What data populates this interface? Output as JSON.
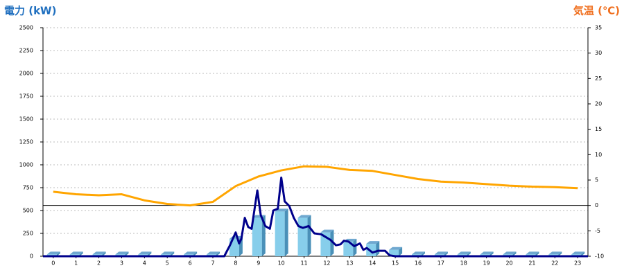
{
  "chart_data": {
    "type": "combo",
    "y_label": "電力 (kW)",
    "y2_label": "気温 (℃)",
    "categories": [
      "0",
      "1",
      "2",
      "3",
      "4",
      "5",
      "6",
      "7",
      "8",
      "9",
      "10",
      "11",
      "12",
      "13",
      "14",
      "15",
      "16",
      "17",
      "18",
      "19",
      "20",
      "21",
      "22",
      "23"
    ],
    "xlim": [
      -0.45,
      23.45
    ],
    "ylim": [
      0,
      2500
    ],
    "yticks": [
      0,
      250,
      500,
      750,
      1000,
      1250,
      1500,
      1750,
      2000,
      2250,
      2500
    ],
    "y2lim": [
      -10,
      35
    ],
    "y2ticks": [
      -10,
      -5,
      0,
      5,
      10,
      15,
      20,
      25,
      30,
      35
    ],
    "grid": true,
    "y2_zero_line": true,
    "series": [
      {
        "type": "bar",
        "color": "#87ceeb",
        "values": [
          20,
          20,
          20,
          20,
          20,
          20,
          20,
          20,
          190,
          420,
          490,
          420,
          260,
          160,
          135,
          70,
          20,
          20,
          20,
          20,
          20,
          20,
          20,
          20
        ]
      },
      {
        "type": "line",
        "color": "#00008b",
        "x": [
          -0.45,
          7.5,
          7.75,
          8.0,
          8.15,
          8.25,
          8.4,
          8.55,
          8.7,
          8.95,
          9.1,
          9.3,
          9.5,
          9.65,
          9.85,
          10.0,
          10.15,
          10.35,
          10.55,
          10.75,
          10.95,
          11.2,
          11.45,
          11.75,
          11.95,
          12.15,
          12.4,
          12.6,
          12.75,
          12.95,
          13.2,
          13.45,
          13.6,
          13.75,
          14.0,
          14.25,
          14.55,
          14.75,
          15.0,
          23.45
        ],
        "values": [
          0,
          0,
          120,
          260,
          140,
          190,
          420,
          320,
          300,
          720,
          450,
          330,
          300,
          500,
          520,
          860,
          600,
          550,
          420,
          330,
          310,
          330,
          250,
          240,
          210,
          180,
          120,
          130,
          170,
          160,
          110,
          140,
          70,
          90,
          40,
          60,
          60,
          10,
          0,
          0
        ]
      },
      {
        "type": "line",
        "axis": "y2",
        "color": "#ffa500",
        "x": [
          0,
          1,
          2,
          3,
          4,
          5,
          6,
          7,
          8,
          9,
          10,
          11,
          12,
          13,
          14,
          15,
          16,
          17,
          18,
          19,
          20,
          21,
          22,
          23
        ],
        "values": [
          2.7,
          2.2,
          2.0,
          2.2,
          1.0,
          0.3,
          0.0,
          0.7,
          3.8,
          5.7,
          6.9,
          7.7,
          7.6,
          7.0,
          6.8,
          6.0,
          5.2,
          4.7,
          4.5,
          4.2,
          3.9,
          3.7,
          3.6,
          3.4
        ]
      }
    ]
  }
}
